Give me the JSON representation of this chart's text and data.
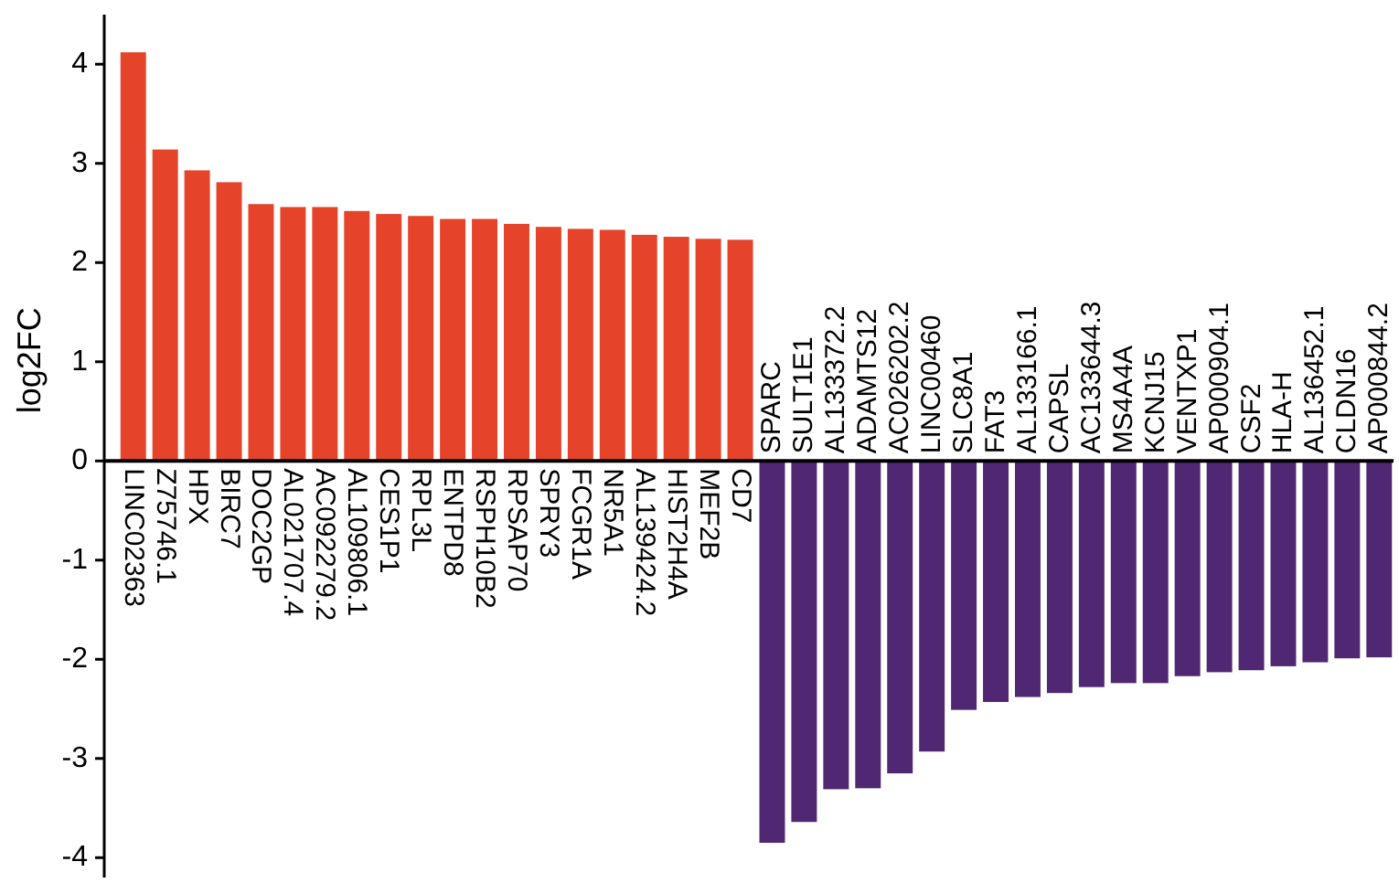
{
  "chart_data": {
    "type": "bar",
    "ylabel": "log2FC",
    "categories": [
      "LINC02363",
      "Z75746.1",
      "HPX",
      "BIRC7",
      "DOC2GP",
      "AL021707.4",
      "AC092279.2",
      "AL109806.1",
      "CES1P1",
      "RPL3L",
      "ENTPD8",
      "RSPH10B2",
      "RPSAP70",
      "SPRY3",
      "FCGR1A",
      "NR5A1",
      "AL139424.2",
      "HIST2H4A",
      "MEF2B",
      "CD7",
      "SPARC",
      "SULT1E1",
      "AL133372.2",
      "ADAMTS12",
      "AC026202.2",
      "LINC00460",
      "SLC8A1",
      "FAT3",
      "AL133166.1",
      "CAPSL",
      "AC133644.3",
      "MS4A4A",
      "KCNJ15",
      "VENTXP1",
      "AP000904.1",
      "CSF2",
      "HLA-H",
      "AL136452.1",
      "CLDN16",
      "AP000844.2"
    ],
    "values": [
      4.12,
      3.14,
      2.93,
      2.81,
      2.59,
      2.56,
      2.56,
      2.52,
      2.49,
      2.47,
      2.44,
      2.44,
      2.39,
      2.36,
      2.34,
      2.33,
      2.28,
      2.26,
      2.24,
      2.23,
      -3.85,
      -3.64,
      -3.31,
      -3.3,
      -3.15,
      -2.93,
      -2.51,
      -2.43,
      -2.38,
      -2.34,
      -2.28,
      -2.24,
      -2.24,
      -2.17,
      -2.13,
      -2.11,
      -2.07,
      -2.03,
      -1.99,
      -1.98
    ],
    "colors": [
      "#e5432a",
      "#e5432a",
      "#e5432a",
      "#e5432a",
      "#e5432a",
      "#e5432a",
      "#e5432a",
      "#e5432a",
      "#e5432a",
      "#e5432a",
      "#e5432a",
      "#e5432a",
      "#e5432a",
      "#e5432a",
      "#e5432a",
      "#e5432a",
      "#e5432a",
      "#e5432a",
      "#e5432a",
      "#e5432a",
      "#4f2773",
      "#4f2773",
      "#4f2773",
      "#4f2773",
      "#4f2773",
      "#4f2773",
      "#4f2773",
      "#4f2773",
      "#4f2773",
      "#4f2773",
      "#4f2773",
      "#4f2773",
      "#4f2773",
      "#4f2773",
      "#4f2773",
      "#4f2773",
      "#4f2773",
      "#4f2773",
      "#4f2773",
      "#4f2773"
    ],
    "ylim": [
      -4.2,
      4.5
    ],
    "yticks": [
      -4,
      -3,
      -2,
      -1,
      0,
      1,
      2,
      3,
      4
    ]
  }
}
